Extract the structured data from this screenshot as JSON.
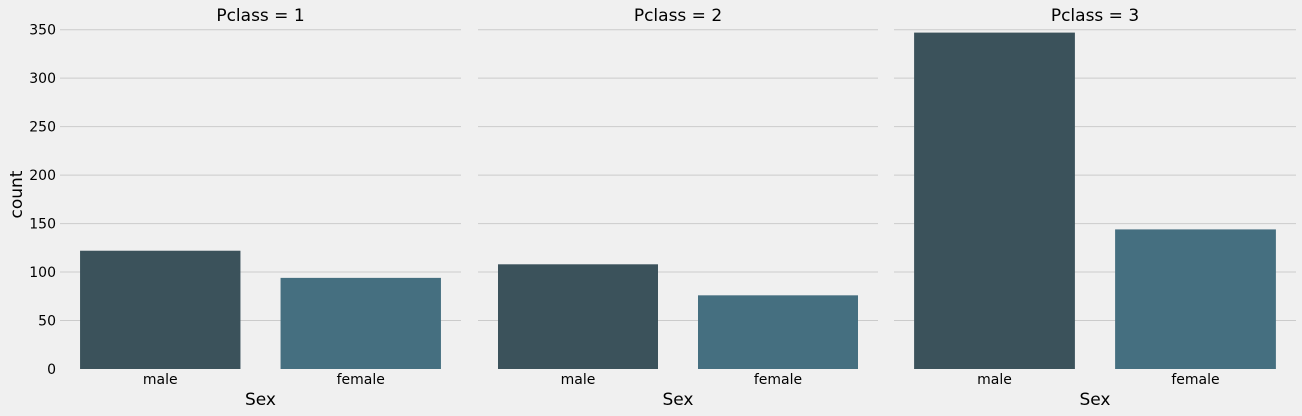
{
  "chart_data": [
    {
      "type": "bar",
      "title": "Pclass = 1",
      "xlabel": "Sex",
      "ylabel": "count",
      "categories": [
        "male",
        "female"
      ],
      "values": [
        122,
        94
      ],
      "ylim": [
        0,
        360
      ],
      "yticks": [
        0,
        50,
        100,
        150,
        200,
        250,
        300,
        350
      ],
      "grid": true,
      "colors": [
        "#3b525b",
        "#456f80"
      ]
    },
    {
      "type": "bar",
      "title": "Pclass = 2",
      "xlabel": "Sex",
      "ylabel": "",
      "categories": [
        "male",
        "female"
      ],
      "values": [
        108,
        76
      ],
      "ylim": [
        0,
        360
      ],
      "yticks": [
        0,
        50,
        100,
        150,
        200,
        250,
        300,
        350
      ],
      "grid": true,
      "colors": [
        "#3b525b",
        "#456f80"
      ]
    },
    {
      "type": "bar",
      "title": "Pclass = 3",
      "xlabel": "Sex",
      "ylabel": "",
      "categories": [
        "male",
        "female"
      ],
      "values": [
        347,
        144
      ],
      "ylim": [
        0,
        360
      ],
      "yticks": [
        0,
        50,
        100,
        150,
        200,
        250,
        300,
        350
      ],
      "grid": true,
      "colors": [
        "#3b525b",
        "#456f80"
      ]
    }
  ],
  "style": {
    "background": "#f0f0f0",
    "grid_color": "#cbcbcb",
    "text_color": "#000000"
  }
}
